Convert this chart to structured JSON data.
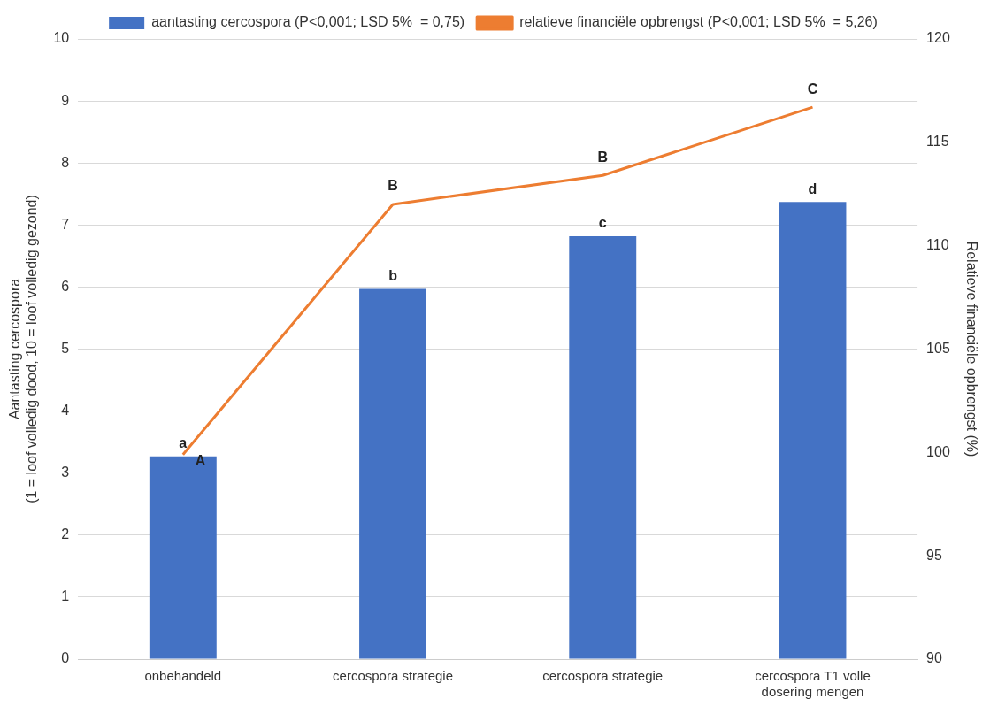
{
  "chart_data": {
    "type": "bar",
    "ylabel": "Aantasting cercospora\n(1 = loof volledig dood, 10 = loof volledig gezond)",
    "y2label": "Relatieve financiële opbrengst (%)",
    "categories": [
      "onbehandeld",
      "cercospora strategie",
      "cercospora strategie",
      "cercospora T1 volle\ndosering mengen"
    ],
    "series": [
      {
        "name": "aantasting cercospora (P<0,001; LSD 5%  = 0,75)",
        "color": "#4472c4",
        "values": [
          3.27,
          5.97,
          6.82,
          7.37
        ],
        "value_labels": [
          "a",
          "b",
          "c",
          "d"
        ]
      },
      {
        "name": "relatieve financiële opbrengst (P<0,001; LSD 5%  = 5,26)",
        "type": "line",
        "axis": "y2",
        "color": "#ed7d31",
        "values": [
          99.9,
          112.0,
          113.4,
          116.7
        ],
        "value_labels": [
          "A",
          "B",
          "B",
          "C"
        ]
      }
    ],
    "ylim": [
      0,
      10
    ],
    "yticks": [
      0,
      1,
      2,
      3,
      4,
      5,
      6,
      7,
      8,
      9,
      10
    ],
    "y2lim": [
      90,
      120
    ],
    "y2ticks": [
      90,
      95,
      100,
      105,
      110,
      115,
      120
    ],
    "grid": "y",
    "legend": "top",
    "marker": "none"
  }
}
